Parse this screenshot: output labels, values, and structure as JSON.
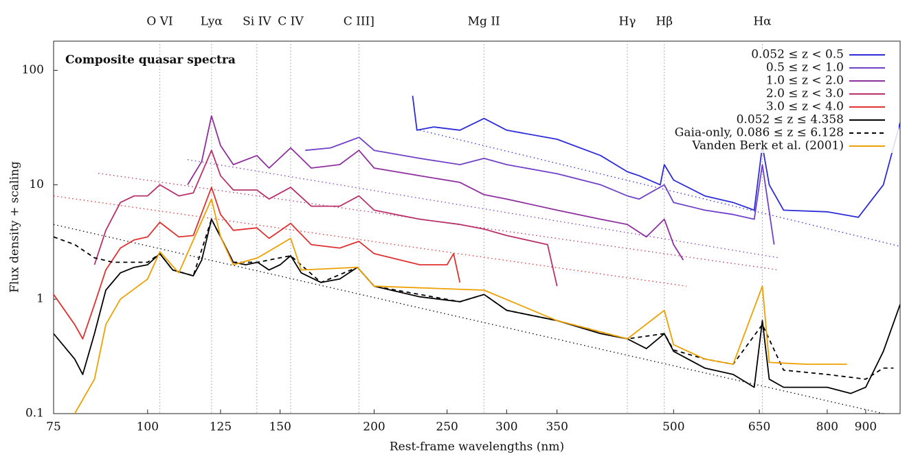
{
  "chart_data": {
    "type": "line",
    "title": "Composite quasar spectra",
    "x_label": "Rest-frame wavelengths (nm)",
    "y_label": "Flux density + scaling",
    "log_x": true,
    "log_y": true,
    "xlim": [
      75,
      1000
    ],
    "ylim": [
      0.1,
      180
    ],
    "xticks": [
      75,
      100,
      125,
      150,
      200,
      250,
      300,
      350,
      500,
      650,
      800,
      900
    ],
    "yticks": [
      0.1,
      1,
      10,
      100
    ],
    "legend": "upper right",
    "annotations": [
      {
        "label": "O VI",
        "x": 103.8
      },
      {
        "label": "Lyα",
        "x": 121.6
      },
      {
        "label": "Si IV",
        "x": 139.7
      },
      {
        "label": "C IV",
        "x": 154.9
      },
      {
        "label": "C III]",
        "x": 190.9
      },
      {
        "label": "Mg II",
        "x": 279.8
      },
      {
        "label": "Hγ",
        "x": 434
      },
      {
        "label": "Hβ",
        "x": 486
      },
      {
        "label": "Hα",
        "x": 656
      }
    ],
    "series": [
      {
        "name": "0.052 ≤ z < 0.5",
        "color": "#2b2bd9",
        "dash": false,
        "x": [
          225,
          228,
          240,
          260,
          280,
          300,
          350,
          400,
          434,
          450,
          480,
          486,
          500,
          550,
          600,
          640,
          656,
          670,
          700,
          800,
          880,
          950,
          1000
        ],
        "values": [
          60,
          30,
          32,
          30,
          38,
          30,
          25,
          18,
          13,
          12,
          10,
          15,
          11,
          8,
          7,
          6,
          22,
          10,
          6,
          5.8,
          5.2,
          10,
          35
        ]
      },
      {
        "name": "0.5 ≤ z < 1.0",
        "color": "#7040c8",
        "dash": false,
        "x": [
          162,
          175,
          191,
          200,
          230,
          260,
          280,
          300,
          350,
          400,
          434,
          450,
          486,
          500,
          550,
          600,
          640,
          656,
          680
        ],
        "values": [
          20,
          21,
          26,
          20,
          17,
          15,
          17,
          15,
          12.5,
          10,
          8,
          7.5,
          10,
          7,
          6,
          5.5,
          5,
          15,
          3
        ]
      },
      {
        "name": "1.0 ≤ z < 2.0",
        "color": "#8e2f9e",
        "dash": false,
        "x": [
          113,
          118,
          121.6,
          125,
          130,
          139.7,
          145,
          154.9,
          165,
          180,
          190.9,
          200,
          230,
          260,
          280,
          300,
          350,
          400,
          434,
          460,
          486,
          500,
          515
        ],
        "values": [
          10,
          16,
          40,
          22,
          15,
          18,
          14,
          21,
          14,
          15,
          20,
          14,
          12,
          10.5,
          8.2,
          7.5,
          6,
          5,
          4.5,
          3.5,
          5,
          3,
          2.2
        ]
      },
      {
        "name": "2.0 ≤ z < 3.0",
        "color": "#b8306a",
        "dash": false,
        "x": [
          85,
          88,
          92,
          96,
          100,
          103.8,
          110,
          115,
          121.6,
          125,
          130,
          139.7,
          145,
          154.9,
          165,
          180,
          190.9,
          200,
          230,
          260,
          280,
          300,
          340,
          350
        ],
        "values": [
          2,
          4,
          7,
          8,
          8,
          10,
          8,
          8.5,
          20,
          12,
          9,
          9,
          7.5,
          9.5,
          6.5,
          6.5,
          8,
          6,
          5,
          4.5,
          4.1,
          3.6,
          3,
          1.3
        ]
      },
      {
        "name": "3.0 ≤ z < 4.0",
        "color": "#e03030",
        "dash": false,
        "x": [
          75,
          80,
          82,
          85,
          88,
          92,
          96,
          100,
          103.8,
          110,
          115,
          121.6,
          125,
          130,
          139.7,
          145,
          154.9,
          165,
          180,
          190.9,
          200,
          230,
          250,
          255,
          260
        ],
        "values": [
          1.1,
          0.6,
          0.45,
          0.9,
          1.8,
          2.8,
          3.3,
          3.5,
          4.7,
          3.5,
          3.6,
          9.5,
          5.5,
          4,
          4.2,
          3.4,
          4.6,
          3,
          2.8,
          3.2,
          2.5,
          2,
          2,
          2.5,
          1.4
        ]
      },
      {
        "name": "0.052 ≤ z ≤ 4.358",
        "color": "#000000",
        "dash": false,
        "x": [
          75,
          80,
          82,
          85,
          88,
          92,
          96,
          100,
          103.8,
          108,
          115,
          118,
          121.6,
          125,
          130,
          135,
          140,
          145,
          150,
          154.9,
          160,
          170,
          180,
          190,
          200,
          230,
          260,
          280,
          300,
          350,
          400,
          434,
          460,
          486,
          500,
          550,
          600,
          640,
          656,
          670,
          700,
          800,
          860,
          900,
          950,
          1000
        ],
        "values": [
          0.5,
          0.3,
          0.22,
          0.5,
          1.2,
          1.7,
          1.9,
          2.0,
          2.5,
          1.8,
          1.6,
          2.2,
          5,
          3.5,
          2.1,
          2.0,
          2.1,
          1.8,
          2.0,
          2.4,
          1.7,
          1.4,
          1.5,
          1.9,
          1.3,
          1.05,
          0.95,
          1.1,
          0.8,
          0.65,
          0.5,
          0.45,
          0.37,
          0.5,
          0.35,
          0.25,
          0.22,
          0.17,
          0.65,
          0.2,
          0.17,
          0.17,
          0.15,
          0.17,
          0.35,
          0.9
        ]
      },
      {
        "name": "Gaia-only, 0.086 ≤ z ≤ 6.128",
        "color": "#000000",
        "dash": true,
        "x": [
          75,
          80,
          85,
          90,
          100,
          103.8,
          108,
          115,
          121.6,
          125,
          130,
          140,
          154.9,
          170,
          190,
          200,
          260,
          280,
          300,
          350,
          434,
          486,
          500,
          550,
          600,
          656,
          700,
          800,
          900,
          950,
          980
        ],
        "values": [
          3.5,
          3.0,
          2.3,
          2.1,
          2.1,
          2.5,
          1.8,
          1.6,
          5,
          3.5,
          2.1,
          2.1,
          2.4,
          1.4,
          1.9,
          1.3,
          0.95,
          1.1,
          0.8,
          0.65,
          0.45,
          0.5,
          0.36,
          0.3,
          0.27,
          0.6,
          0.24,
          0.22,
          0.2,
          0.25,
          0.25
        ]
      },
      {
        "name": "Vanden Berk et al. (2001)",
        "color": "#eea000",
        "dash": false,
        "x": [
          80,
          85,
          88,
          92,
          100,
          103.8,
          110,
          121.6,
          125,
          130,
          140,
          154.9,
          160,
          190,
          200,
          280,
          350,
          434,
          486,
          500,
          550,
          600,
          656,
          670,
          750,
          800,
          850
        ],
        "values": [
          0.1,
          0.2,
          0.6,
          1.0,
          1.5,
          2.6,
          1.7,
          7.5,
          3.5,
          2.0,
          2.3,
          3.4,
          1.8,
          1.9,
          1.3,
          1.2,
          0.65,
          0.45,
          0.8,
          0.4,
          0.3,
          0.27,
          1.3,
          0.28,
          0.27,
          0.27,
          0.27
        ]
      }
    ],
    "reference_lines": [
      {
        "color": "#2b2bd9",
        "x": [
          230,
          1000
        ],
        "values": [
          30,
          2.9
        ]
      },
      {
        "color": "#7040c8",
        "x": [
          113,
          690
        ],
        "values": [
          16.6,
          2.3
        ]
      },
      {
        "color": "#b8306a",
        "x": [
          86,
          690
        ],
        "values": [
          12.6,
          1.8
        ]
      },
      {
        "color": "#e03030",
        "x": [
          75,
          520
        ],
        "values": [
          8,
          1.3
        ]
      },
      {
        "color": "#000000",
        "x": [
          75,
          950
        ],
        "values": [
          4.5,
          0.1
        ]
      }
    ]
  }
}
